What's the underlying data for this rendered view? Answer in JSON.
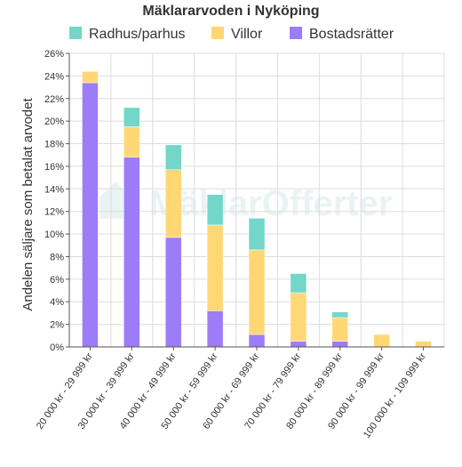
{
  "chart_data": {
    "type": "bar",
    "stacked": true,
    "title": "Mäklararvoden i Nyköping",
    "ylabel": "Andelen säljare som betalat arvodet",
    "xlabel": "",
    "ylim": [
      0,
      26
    ],
    "ytick_step": 2,
    "ytick_labels": [
      "0%",
      "2%",
      "4%",
      "6%",
      "8%",
      "10%",
      "12%",
      "14%",
      "16%",
      "18%",
      "20%",
      "22%",
      "24%",
      "26%"
    ],
    "grid": true,
    "legend_position": "top",
    "watermark": "MäklarOfferter",
    "categories": [
      "20 000 kr - 29 999 kr",
      "30 000 kr - 39 999 kr",
      "40 000 kr - 49 999 kr",
      "50 000 kr - 59 999 kr",
      "60 000 kr - 69 999 kr",
      "70 000 kr - 79 999 kr",
      "80 000 kr - 89 999 kr",
      "90 000 kr - 99 999 kr",
      "100 000 kr - 109 999 kr"
    ],
    "series": [
      {
        "name": "Bostadsrätter",
        "color": "#9d7cf8",
        "values": [
          23.4,
          16.8,
          9.7,
          3.2,
          1.1,
          0.5,
          0.5,
          0,
          0
        ]
      },
      {
        "name": "Villor",
        "color": "#ffd774",
        "values": [
          1.0,
          2.7,
          6.0,
          7.6,
          7.5,
          4.3,
          2.1,
          1.1,
          0.5
        ]
      },
      {
        "name": "Radhus/parhus",
        "color": "#72d6c9",
        "values": [
          0,
          1.7,
          2.2,
          2.7,
          2.8,
          1.7,
          0.5,
          0,
          0
        ]
      }
    ],
    "legend_order": [
      "Radhus/parhus",
      "Villor",
      "Bostadsrätter"
    ]
  }
}
